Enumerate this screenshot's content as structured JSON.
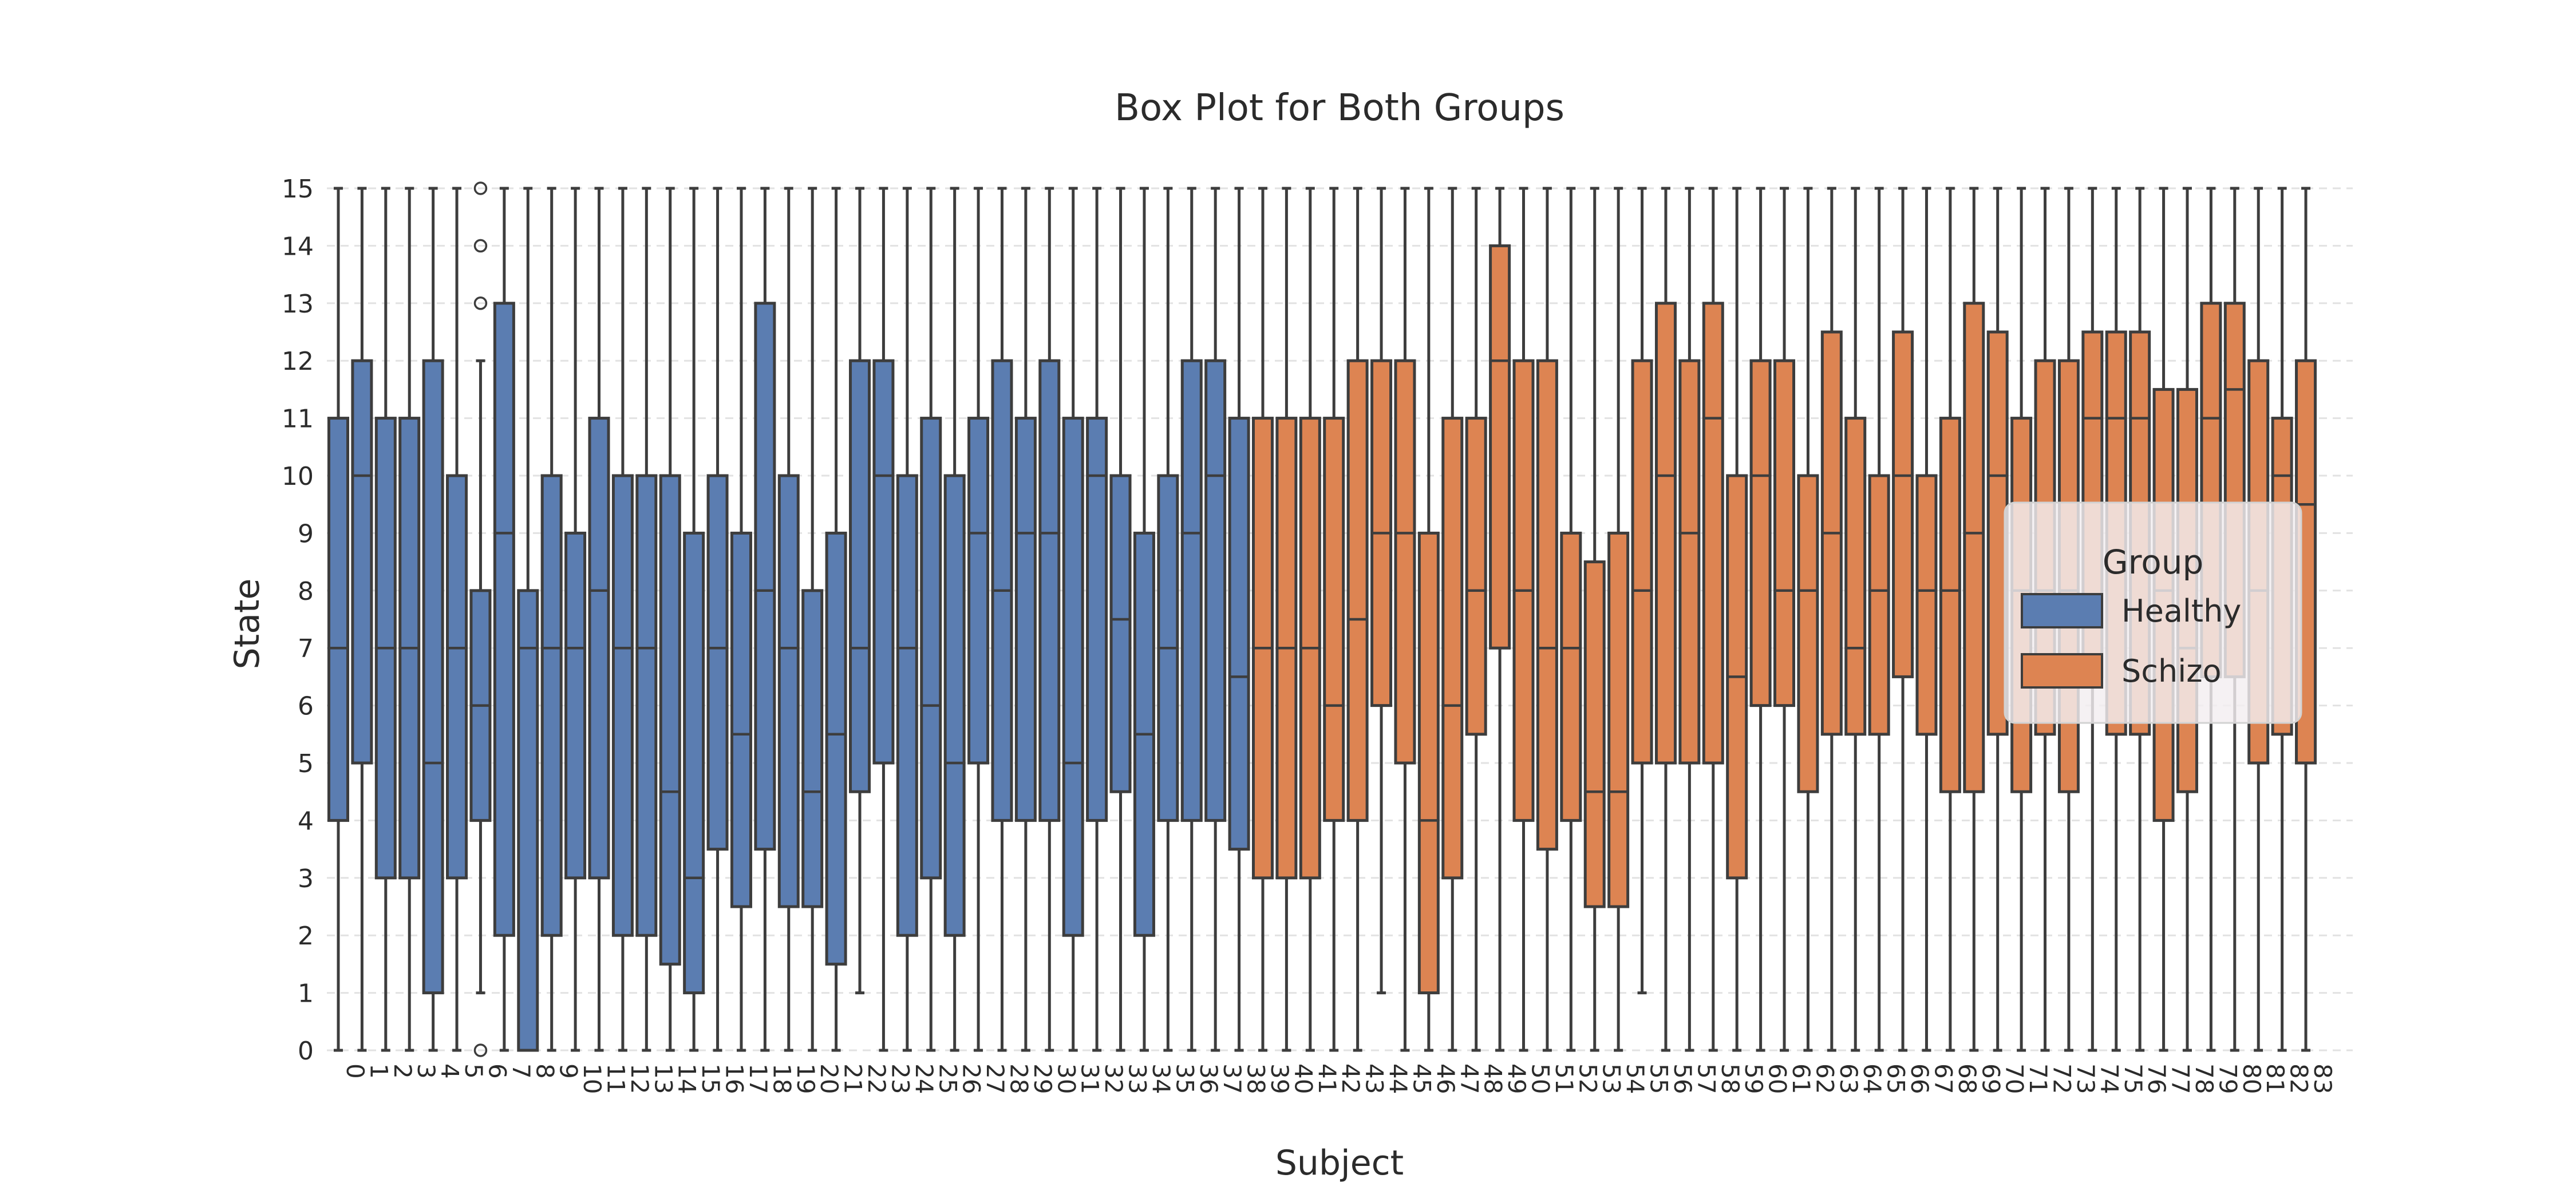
{
  "title": "Box Plot for Both Groups",
  "axes": {
    "xlabel": "Subject",
    "ylabel": "State"
  },
  "legend": {
    "title": "Group",
    "entries": [
      {
        "label": "Healthy",
        "color": "#5b7db1"
      },
      {
        "label": "Schizo",
        "color": "#dd8452"
      }
    ]
  },
  "chart_data": {
    "type": "box",
    "title": "Box Plot for Both Groups",
    "xlabel": "Subject",
    "ylabel": "State",
    "ylim": [
      0,
      15
    ],
    "yticks": [
      0,
      1,
      2,
      3,
      4,
      5,
      6,
      7,
      8,
      9,
      10,
      11,
      12,
      13,
      14,
      15
    ],
    "grid": "horizontal-dashed",
    "legend_position": "right-middle",
    "group_colors": {
      "Healthy": "#5b7db1",
      "Schizo": "#dd8452"
    },
    "edge_color": "#3d3d3d",
    "subjects": [
      {
        "id": 0,
        "group": "Healthy",
        "whislo": 0,
        "q1": 4,
        "med": 7,
        "q3": 11,
        "whishi": 15,
        "fliers": []
      },
      {
        "id": 1,
        "group": "Healthy",
        "whislo": 0,
        "q1": 5,
        "med": 10,
        "q3": 12,
        "whishi": 15,
        "fliers": []
      },
      {
        "id": 2,
        "group": "Healthy",
        "whislo": 0,
        "q1": 3,
        "med": 7,
        "q3": 11,
        "whishi": 15,
        "fliers": []
      },
      {
        "id": 3,
        "group": "Healthy",
        "whislo": 0,
        "q1": 3,
        "med": 7,
        "q3": 11,
        "whishi": 15,
        "fliers": []
      },
      {
        "id": 4,
        "group": "Healthy",
        "whislo": 0,
        "q1": 1,
        "med": 5,
        "q3": 12,
        "whishi": 15,
        "fliers": []
      },
      {
        "id": 5,
        "group": "Healthy",
        "whislo": 0,
        "q1": 3,
        "med": 7,
        "q3": 10,
        "whishi": 15,
        "fliers": []
      },
      {
        "id": 6,
        "group": "Healthy",
        "whislo": 1,
        "q1": 4,
        "med": 6,
        "q3": 8,
        "whishi": 12,
        "fliers": [
          0,
          13,
          14,
          15
        ]
      },
      {
        "id": 7,
        "group": "Healthy",
        "whislo": 0,
        "q1": 2,
        "med": 9,
        "q3": 13,
        "whishi": 15,
        "fliers": []
      },
      {
        "id": 8,
        "group": "Healthy",
        "whislo": 0,
        "q1": 0,
        "med": 7,
        "q3": 8,
        "whishi": 15,
        "fliers": []
      },
      {
        "id": 9,
        "group": "Healthy",
        "whislo": 0,
        "q1": 2,
        "med": 7,
        "q3": 10,
        "whishi": 15,
        "fliers": []
      },
      {
        "id": 10,
        "group": "Healthy",
        "whislo": 0,
        "q1": 3,
        "med": 7,
        "q3": 9,
        "whishi": 15,
        "fliers": []
      },
      {
        "id": 11,
        "group": "Healthy",
        "whislo": 0,
        "q1": 3,
        "med": 8,
        "q3": 11,
        "whishi": 15,
        "fliers": []
      },
      {
        "id": 12,
        "group": "Healthy",
        "whislo": 0,
        "q1": 2,
        "med": 7,
        "q3": 10,
        "whishi": 15,
        "fliers": []
      },
      {
        "id": 13,
        "group": "Healthy",
        "whislo": 0,
        "q1": 2,
        "med": 7,
        "q3": 10,
        "whishi": 15,
        "fliers": []
      },
      {
        "id": 14,
        "group": "Healthy",
        "whislo": 0,
        "q1": 1.5,
        "med": 4.5,
        "q3": 10,
        "whishi": 15,
        "fliers": []
      },
      {
        "id": 15,
        "group": "Healthy",
        "whislo": 0,
        "q1": 1,
        "med": 3,
        "q3": 9,
        "whishi": 15,
        "fliers": []
      },
      {
        "id": 16,
        "group": "Healthy",
        "whislo": 0,
        "q1": 3.5,
        "med": 7,
        "q3": 10,
        "whishi": 15,
        "fliers": []
      },
      {
        "id": 17,
        "group": "Healthy",
        "whislo": 0,
        "q1": 2.5,
        "med": 5.5,
        "q3": 9,
        "whishi": 15,
        "fliers": []
      },
      {
        "id": 18,
        "group": "Healthy",
        "whislo": 0,
        "q1": 3.5,
        "med": 8,
        "q3": 13,
        "whishi": 15,
        "fliers": []
      },
      {
        "id": 19,
        "group": "Healthy",
        "whislo": 0,
        "q1": 2.5,
        "med": 7,
        "q3": 10,
        "whishi": 15,
        "fliers": []
      },
      {
        "id": 20,
        "group": "Healthy",
        "whislo": 0,
        "q1": 2.5,
        "med": 4.5,
        "q3": 8,
        "whishi": 15,
        "fliers": []
      },
      {
        "id": 21,
        "group": "Healthy",
        "whislo": 0,
        "q1": 1.5,
        "med": 5.5,
        "q3": 9,
        "whishi": 15,
        "fliers": []
      },
      {
        "id": 22,
        "group": "Healthy",
        "whislo": 1,
        "q1": 4.5,
        "med": 7,
        "q3": 12,
        "whishi": 15,
        "fliers": []
      },
      {
        "id": 23,
        "group": "Healthy",
        "whislo": 0,
        "q1": 5,
        "med": 10,
        "q3": 12,
        "whishi": 15,
        "fliers": []
      },
      {
        "id": 24,
        "group": "Healthy",
        "whislo": 0,
        "q1": 2,
        "med": 7,
        "q3": 10,
        "whishi": 15,
        "fliers": []
      },
      {
        "id": 25,
        "group": "Healthy",
        "whislo": 0,
        "q1": 3,
        "med": 6,
        "q3": 11,
        "whishi": 15,
        "fliers": []
      },
      {
        "id": 26,
        "group": "Healthy",
        "whislo": 0,
        "q1": 2,
        "med": 5,
        "q3": 10,
        "whishi": 15,
        "fliers": []
      },
      {
        "id": 27,
        "group": "Healthy",
        "whislo": 0,
        "q1": 5,
        "med": 9,
        "q3": 11,
        "whishi": 15,
        "fliers": []
      },
      {
        "id": 28,
        "group": "Healthy",
        "whislo": 0,
        "q1": 4,
        "med": 8,
        "q3": 12,
        "whishi": 15,
        "fliers": []
      },
      {
        "id": 29,
        "group": "Healthy",
        "whislo": 0,
        "q1": 4,
        "med": 9,
        "q3": 11,
        "whishi": 15,
        "fliers": []
      },
      {
        "id": 30,
        "group": "Healthy",
        "whislo": 0,
        "q1": 4,
        "med": 9,
        "q3": 12,
        "whishi": 15,
        "fliers": []
      },
      {
        "id": 31,
        "group": "Healthy",
        "whislo": 0,
        "q1": 2,
        "med": 5,
        "q3": 11,
        "whishi": 15,
        "fliers": []
      },
      {
        "id": 32,
        "group": "Healthy",
        "whislo": 0,
        "q1": 4,
        "med": 10,
        "q3": 11,
        "whishi": 15,
        "fliers": []
      },
      {
        "id": 33,
        "group": "Healthy",
        "whislo": 0,
        "q1": 4.5,
        "med": 7.5,
        "q3": 10,
        "whishi": 15,
        "fliers": []
      },
      {
        "id": 34,
        "group": "Healthy",
        "whislo": 0,
        "q1": 2,
        "med": 5.5,
        "q3": 9,
        "whishi": 15,
        "fliers": []
      },
      {
        "id": 35,
        "group": "Healthy",
        "whislo": 0,
        "q1": 4,
        "med": 7,
        "q3": 10,
        "whishi": 15,
        "fliers": []
      },
      {
        "id": 36,
        "group": "Healthy",
        "whislo": 0,
        "q1": 4,
        "med": 9,
        "q3": 12,
        "whishi": 15,
        "fliers": []
      },
      {
        "id": 37,
        "group": "Healthy",
        "whislo": 0,
        "q1": 4,
        "med": 10,
        "q3": 12,
        "whishi": 15,
        "fliers": []
      },
      {
        "id": 38,
        "group": "Healthy",
        "whislo": 0,
        "q1": 3.5,
        "med": 6.5,
        "q3": 11,
        "whishi": 15,
        "fliers": []
      },
      {
        "id": 39,
        "group": "Schizo",
        "whislo": 0,
        "q1": 3,
        "med": 7,
        "q3": 11,
        "whishi": 15,
        "fliers": []
      },
      {
        "id": 40,
        "group": "Schizo",
        "whislo": 0,
        "q1": 3,
        "med": 7,
        "q3": 11,
        "whishi": 15,
        "fliers": []
      },
      {
        "id": 41,
        "group": "Schizo",
        "whislo": 0,
        "q1": 3,
        "med": 7,
        "q3": 11,
        "whishi": 15,
        "fliers": []
      },
      {
        "id": 42,
        "group": "Schizo",
        "whislo": 0,
        "q1": 4,
        "med": 6,
        "q3": 11,
        "whishi": 15,
        "fliers": []
      },
      {
        "id": 43,
        "group": "Schizo",
        "whislo": 0,
        "q1": 4,
        "med": 7.5,
        "q3": 12,
        "whishi": 15,
        "fliers": []
      },
      {
        "id": 44,
        "group": "Schizo",
        "whislo": 1,
        "q1": 6,
        "med": 9,
        "q3": 12,
        "whishi": 15,
        "fliers": []
      },
      {
        "id": 45,
        "group": "Schizo",
        "whislo": 0,
        "q1": 5,
        "med": 9,
        "q3": 12,
        "whishi": 15,
        "fliers": []
      },
      {
        "id": 46,
        "group": "Schizo",
        "whislo": 0,
        "q1": 1,
        "med": 4,
        "q3": 9,
        "whishi": 15,
        "fliers": []
      },
      {
        "id": 47,
        "group": "Schizo",
        "whislo": 0,
        "q1": 3,
        "med": 6,
        "q3": 11,
        "whishi": 15,
        "fliers": []
      },
      {
        "id": 48,
        "group": "Schizo",
        "whislo": 0,
        "q1": 5.5,
        "med": 8,
        "q3": 11,
        "whishi": 15,
        "fliers": []
      },
      {
        "id": 49,
        "group": "Schizo",
        "whislo": 0,
        "q1": 7,
        "med": 12,
        "q3": 14,
        "whishi": 15,
        "fliers": []
      },
      {
        "id": 50,
        "group": "Schizo",
        "whislo": 0,
        "q1": 4,
        "med": 8,
        "q3": 12,
        "whishi": 15,
        "fliers": []
      },
      {
        "id": 51,
        "group": "Schizo",
        "whislo": 0,
        "q1": 3.5,
        "med": 7,
        "q3": 12,
        "whishi": 15,
        "fliers": []
      },
      {
        "id": 52,
        "group": "Schizo",
        "whislo": 0,
        "q1": 4,
        "med": 7,
        "q3": 9,
        "whishi": 15,
        "fliers": []
      },
      {
        "id": 53,
        "group": "Schizo",
        "whislo": 0,
        "q1": 2.5,
        "med": 4.5,
        "q3": 8.5,
        "whishi": 15,
        "fliers": []
      },
      {
        "id": 54,
        "group": "Schizo",
        "whislo": 0,
        "q1": 2.5,
        "med": 4.5,
        "q3": 9,
        "whishi": 15,
        "fliers": []
      },
      {
        "id": 55,
        "group": "Schizo",
        "whislo": 1,
        "q1": 5,
        "med": 8,
        "q3": 12,
        "whishi": 15,
        "fliers": []
      },
      {
        "id": 56,
        "group": "Schizo",
        "whislo": 0,
        "q1": 5,
        "med": 10,
        "q3": 13,
        "whishi": 15,
        "fliers": []
      },
      {
        "id": 57,
        "group": "Schizo",
        "whislo": 0,
        "q1": 5,
        "med": 9,
        "q3": 12,
        "whishi": 15,
        "fliers": []
      },
      {
        "id": 58,
        "group": "Schizo",
        "whislo": 0,
        "q1": 5,
        "med": 11,
        "q3": 13,
        "whishi": 15,
        "fliers": []
      },
      {
        "id": 59,
        "group": "Schizo",
        "whislo": 0,
        "q1": 3,
        "med": 6.5,
        "q3": 10,
        "whishi": 15,
        "fliers": []
      },
      {
        "id": 60,
        "group": "Schizo",
        "whislo": 0,
        "q1": 6,
        "med": 10,
        "q3": 12,
        "whishi": 15,
        "fliers": []
      },
      {
        "id": 61,
        "group": "Schizo",
        "whislo": 0,
        "q1": 6,
        "med": 8,
        "q3": 12,
        "whishi": 15,
        "fliers": []
      },
      {
        "id": 62,
        "group": "Schizo",
        "whislo": 0,
        "q1": 4.5,
        "med": 8,
        "q3": 10,
        "whishi": 15,
        "fliers": []
      },
      {
        "id": 63,
        "group": "Schizo",
        "whislo": 0,
        "q1": 5.5,
        "med": 9,
        "q3": 12.5,
        "whishi": 15,
        "fliers": []
      },
      {
        "id": 64,
        "group": "Schizo",
        "whislo": 0,
        "q1": 5.5,
        "med": 7,
        "q3": 11,
        "whishi": 15,
        "fliers": []
      },
      {
        "id": 65,
        "group": "Schizo",
        "whislo": 0,
        "q1": 5.5,
        "med": 8,
        "q3": 10,
        "whishi": 15,
        "fliers": []
      },
      {
        "id": 66,
        "group": "Schizo",
        "whislo": 0,
        "q1": 6.5,
        "med": 10,
        "q3": 12.5,
        "whishi": 15,
        "fliers": []
      },
      {
        "id": 67,
        "group": "Schizo",
        "whislo": 0,
        "q1": 5.5,
        "med": 8,
        "q3": 10,
        "whishi": 15,
        "fliers": []
      },
      {
        "id": 68,
        "group": "Schizo",
        "whislo": 0,
        "q1": 4.5,
        "med": 8,
        "q3": 11,
        "whishi": 15,
        "fliers": []
      },
      {
        "id": 69,
        "group": "Schizo",
        "whislo": 0,
        "q1": 4.5,
        "med": 9,
        "q3": 13,
        "whishi": 15,
        "fliers": []
      },
      {
        "id": 70,
        "group": "Schizo",
        "whislo": 0,
        "q1": 5.5,
        "med": 10,
        "q3": 12.5,
        "whishi": 15,
        "fliers": []
      },
      {
        "id": 71,
        "group": "Schizo",
        "whislo": 0,
        "q1": 4.5,
        "med": 8,
        "q3": 11,
        "whishi": 15,
        "fliers": []
      },
      {
        "id": 72,
        "group": "Schizo",
        "whislo": 0,
        "q1": 5.5,
        "med": 8,
        "q3": 12,
        "whishi": 15,
        "fliers": []
      },
      {
        "id": 73,
        "group": "Schizo",
        "whislo": 0,
        "q1": 4.5,
        "med": 8,
        "q3": 12,
        "whishi": 15,
        "fliers": []
      },
      {
        "id": 74,
        "group": "Schizo",
        "whislo": 0,
        "q1": 6.5,
        "med": 11,
        "q3": 12.5,
        "whishi": 15,
        "fliers": []
      },
      {
        "id": 75,
        "group": "Schizo",
        "whislo": 0,
        "q1": 5.5,
        "med": 11,
        "q3": 12.5,
        "whishi": 15,
        "fliers": []
      },
      {
        "id": 76,
        "group": "Schizo",
        "whislo": 0,
        "q1": 5.5,
        "med": 11,
        "q3": 12.5,
        "whishi": 15,
        "fliers": []
      },
      {
        "id": 77,
        "group": "Schizo",
        "whislo": 0,
        "q1": 4,
        "med": 8,
        "q3": 11.5,
        "whishi": 15,
        "fliers": []
      },
      {
        "id": 78,
        "group": "Schizo",
        "whislo": 0,
        "q1": 4.5,
        "med": 7,
        "q3": 11.5,
        "whishi": 15,
        "fliers": []
      },
      {
        "id": 79,
        "group": "Schizo",
        "whislo": 0,
        "q1": 6.5,
        "med": 11,
        "q3": 13,
        "whishi": 15,
        "fliers": []
      },
      {
        "id": 80,
        "group": "Schizo",
        "whislo": 0,
        "q1": 6.5,
        "med": 11.5,
        "q3": 13,
        "whishi": 15,
        "fliers": []
      },
      {
        "id": 81,
        "group": "Schizo",
        "whislo": 0,
        "q1": 5,
        "med": 8,
        "q3": 12,
        "whishi": 15,
        "fliers": []
      },
      {
        "id": 82,
        "group": "Schizo",
        "whislo": 0,
        "q1": 5.5,
        "med": 10,
        "q3": 11,
        "whishi": 15,
        "fliers": []
      },
      {
        "id": 83,
        "group": "Schizo",
        "whislo": 0,
        "q1": 5,
        "med": 9.5,
        "q3": 12,
        "whishi": 15,
        "fliers": []
      }
    ]
  }
}
